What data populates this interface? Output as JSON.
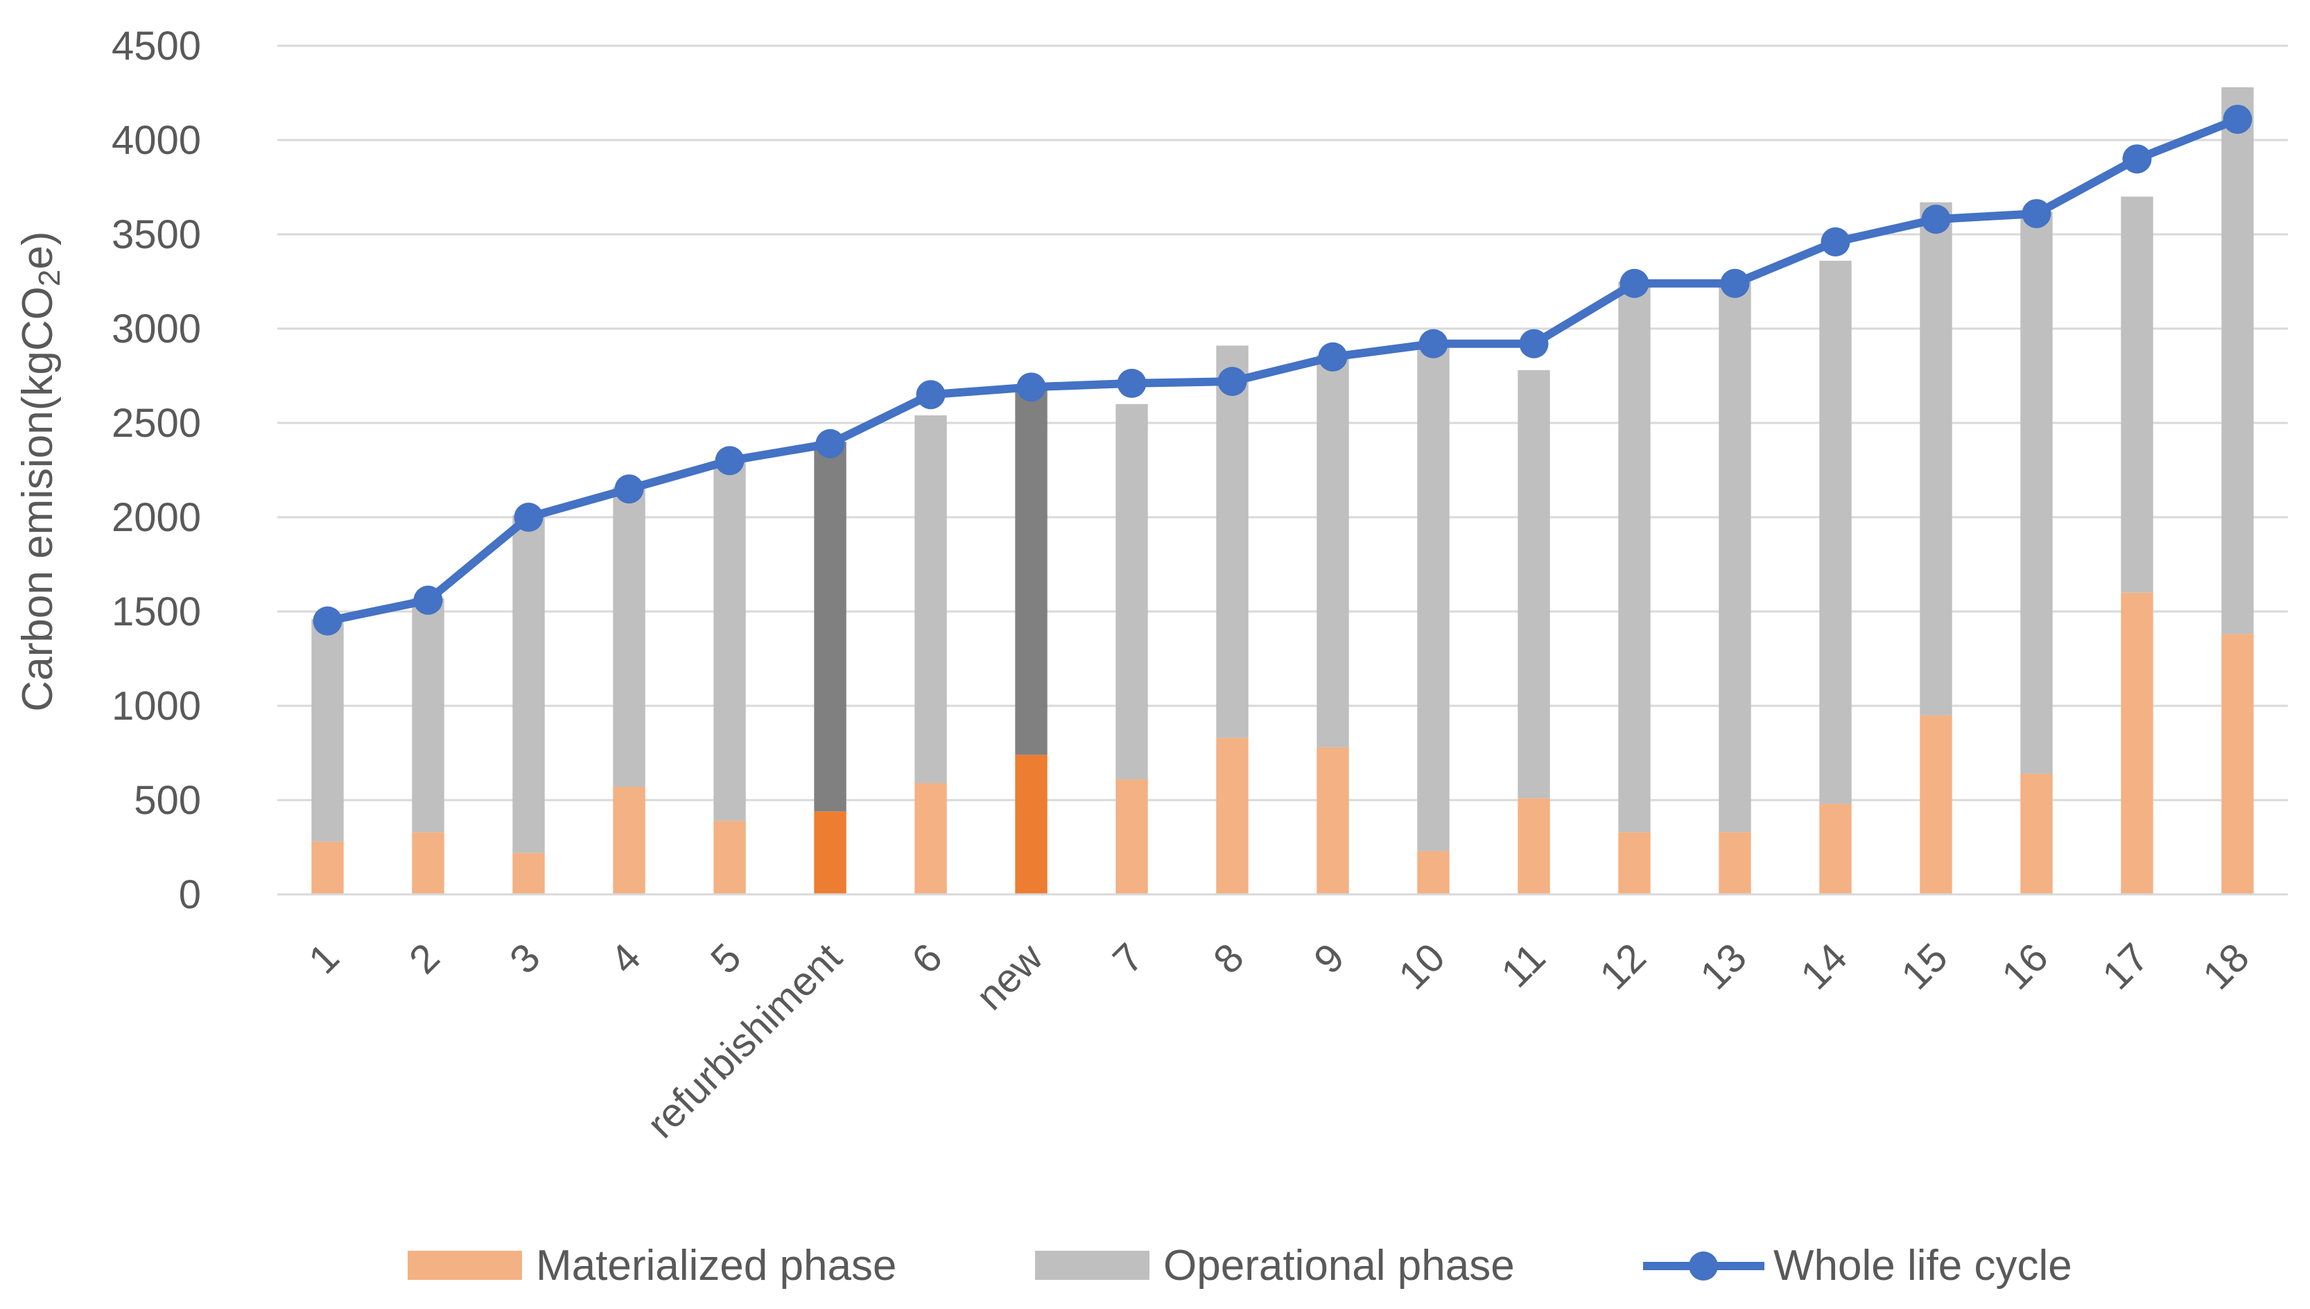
{
  "chart_data": {
    "type": "bar",
    "stacked": true,
    "categories": [
      "1",
      "2",
      "3",
      "4",
      "5",
      "refurbishiment",
      "6",
      "new",
      "7",
      "8",
      "9",
      "10",
      "11",
      "12",
      "13",
      "14",
      "15",
      "16",
      "17",
      "18"
    ],
    "highlighted_categories": [
      "refurbishiment",
      "new"
    ],
    "series": [
      {
        "name": "Materialized phase",
        "kind": "bar",
        "color": "#F4B183",
        "highlight_color": "#ED7D31",
        "values": [
          280,
          330,
          220,
          570,
          390,
          440,
          590,
          740,
          610,
          830,
          780,
          230,
          510,
          330,
          330,
          480,
          950,
          640,
          1600,
          1380
        ]
      },
      {
        "name": "Operational phase",
        "kind": "bar",
        "color": "#BFBFBF",
        "highlight_color": "#808080",
        "values": [
          1180,
          1240,
          1790,
          1590,
          1910,
          1960,
          1950,
          1960,
          1990,
          2080,
          2080,
          2690,
          2270,
          2920,
          2920,
          2880,
          2720,
          2980,
          2100,
          2900
        ]
      },
      {
        "name": "Whole life cycle",
        "kind": "line",
        "color": "#4472C4",
        "values": [
          1450,
          1560,
          2000,
          2150,
          2300,
          2390,
          2650,
          2690,
          2710,
          2720,
          2850,
          2920,
          2920,
          3240,
          3240,
          3460,
          3580,
          3610,
          3900,
          4110
        ]
      }
    ],
    "ylabel": "Carbon emision(kgCO",
    "ylabel_subscript": "2",
    "ylabel_suffix": "e)",
    "xlabel": "",
    "ylim": [
      0,
      4500
    ],
    "yticks": [
      "0",
      "500",
      "1000",
      "1500",
      "2000",
      "2500",
      "3000",
      "3500",
      "4000",
      "4500"
    ],
    "grid": true,
    "legend_position": "bottom"
  }
}
